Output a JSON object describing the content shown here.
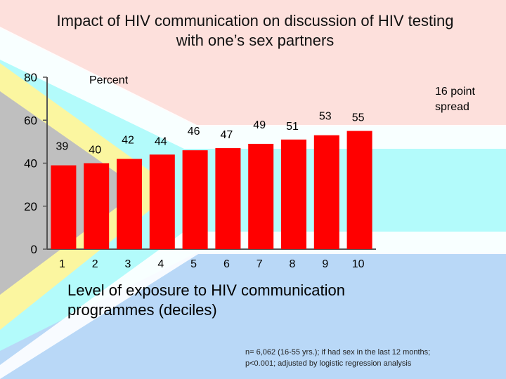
{
  "title_line1": "Impact of HIV communication on discussion of HIV testing",
  "title_line2": "with one’s sex partners",
  "annotation": {
    "y_unit_label": "Percent",
    "spread_line1": "16 point",
    "spread_line2": "spread"
  },
  "footnote": {
    "line1": "n= 6,062   (16-55 yrs.); if had sex in the last 12 months;",
    "line2": "p<0.001; adjusted by logistic regression analysis"
  },
  "colors": {
    "bar": "#ff0000",
    "axis": "#555555",
    "pink": "#fde0dc",
    "cyan": "#b3fbfb",
    "blue": "#b9d8f7",
    "yellow": "#fbf6a0",
    "gray": "#bfbfbf"
  },
  "chart_data": {
    "type": "bar",
    "title": "Impact of HIV communication on discussion of HIV testing with one’s sex partners",
    "xlabel": "Level of exposure to HIV communication programmes (deciles)",
    "ylabel": "Percent",
    "categories": [
      "1",
      "2",
      "3",
      "4",
      "5",
      "6",
      "7",
      "8",
      "9",
      "10"
    ],
    "values": [
      39,
      40,
      42,
      44,
      46,
      47,
      49,
      51,
      53,
      55
    ],
    "ylim": [
      0,
      80
    ],
    "yticks": [
      0,
      20,
      40,
      60,
      80
    ],
    "grid": false,
    "legend": "none"
  }
}
